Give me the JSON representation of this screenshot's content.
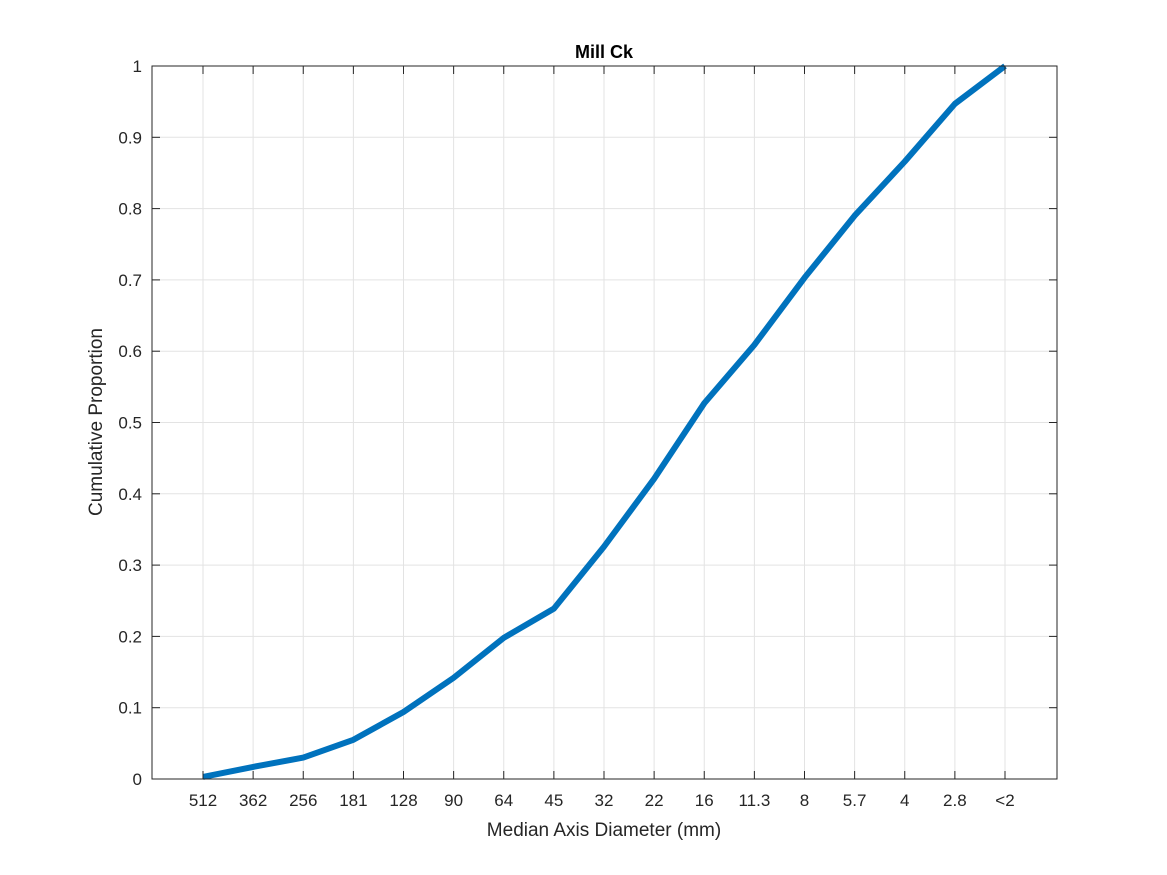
{
  "chart_data": {
    "type": "line",
    "title": "Mill Ck",
    "xlabel": "Median Axis Diameter (mm)",
    "ylabel": "Cumulative Proportion",
    "categories": [
      "512",
      "362",
      "256",
      "181",
      "128",
      "90",
      "64",
      "45",
      "32",
      "22",
      "16",
      "11.3",
      "8",
      "5.7",
      "4",
      "2.8",
      "<2"
    ],
    "values": [
      0.003,
      0.017,
      0.03,
      0.055,
      0.094,
      0.142,
      0.198,
      0.239,
      0.326,
      0.421,
      0.527,
      0.609,
      0.703,
      0.79,
      0.866,
      0.947,
      1.0
    ],
    "ylim": [
      0,
      1
    ],
    "yticks": [
      "0",
      "0.1",
      "0.2",
      "0.3",
      "0.4",
      "0.5",
      "0.6",
      "0.7",
      "0.8",
      "0.9",
      "1"
    ],
    "grid": true,
    "colors": {
      "line": "#0072BD",
      "axes": "#262626",
      "grid": "#e3e3e3"
    }
  }
}
